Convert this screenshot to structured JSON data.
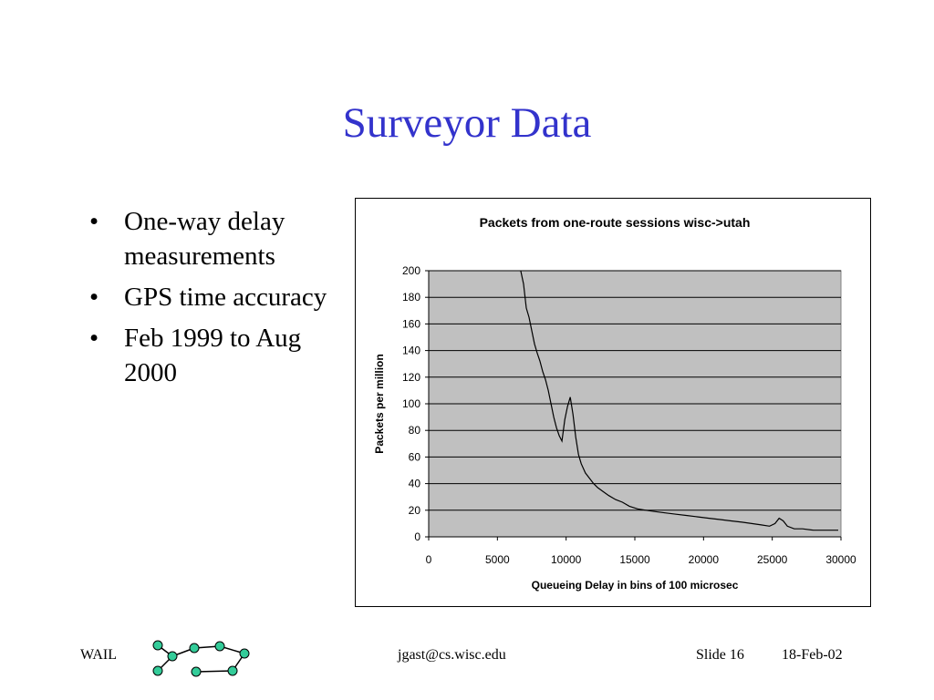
{
  "slide": {
    "title": "Surveyor Data",
    "bullets": [
      "One-way delay measurements",
      "GPS time accuracy",
      "Feb 1999 to Aug 2000"
    ],
    "bullet_symbol": "•"
  },
  "footer": {
    "left": "WAIL",
    "center": "jgast@cs.wisc.edu",
    "slide_number": "Slide 16",
    "date": "18-Feb-02"
  },
  "colors": {
    "title": "#3333cc",
    "plot_area": "#c0c0c0",
    "logo_node": "#33cc99"
  },
  "chart_data": {
    "type": "line",
    "title": "Packets from one-route sessions wisc->utah",
    "xlabel": "Queueing Delay in bins of 100 microsec",
    "ylabel": "Packets per million",
    "xlim": [
      0,
      30000
    ],
    "ylim": [
      0,
      200
    ],
    "xticks": [
      0,
      5000,
      10000,
      15000,
      20000,
      25000,
      30000
    ],
    "yticks": [
      0,
      20,
      40,
      60,
      80,
      100,
      120,
      140,
      160,
      180,
      200
    ],
    "grid": "horizontal",
    "legend": "none",
    "series": [
      {
        "values": [
          [
            6700,
            200
          ],
          [
            6900,
            190
          ],
          [
            7100,
            172
          ],
          [
            7300,
            165
          ],
          [
            7500,
            155
          ],
          [
            7700,
            145
          ],
          [
            7900,
            138
          ],
          [
            8100,
            132
          ],
          [
            8300,
            124
          ],
          [
            8500,
            118
          ],
          [
            8700,
            110
          ],
          [
            8900,
            100
          ],
          [
            9100,
            90
          ],
          [
            9300,
            82
          ],
          [
            9500,
            76
          ],
          [
            9700,
            72
          ],
          [
            9900,
            88
          ],
          [
            10100,
            98
          ],
          [
            10300,
            105
          ],
          [
            10500,
            92
          ],
          [
            10700,
            75
          ],
          [
            10900,
            62
          ],
          [
            11100,
            55
          ],
          [
            11400,
            48
          ],
          [
            11700,
            44
          ],
          [
            12000,
            40
          ],
          [
            12300,
            37
          ],
          [
            12700,
            34
          ],
          [
            13100,
            31
          ],
          [
            13600,
            28
          ],
          [
            14100,
            26
          ],
          [
            14600,
            23
          ],
          [
            15200,
            21
          ],
          [
            15800,
            20
          ],
          [
            16500,
            19
          ],
          [
            17200,
            18
          ],
          [
            18000,
            17
          ],
          [
            18800,
            16
          ],
          [
            19600,
            15
          ],
          [
            20400,
            14
          ],
          [
            21200,
            13
          ],
          [
            22000,
            12
          ],
          [
            22800,
            11
          ],
          [
            23500,
            10
          ],
          [
            24200,
            9
          ],
          [
            24800,
            8
          ],
          [
            25200,
            10
          ],
          [
            25500,
            14
          ],
          [
            25800,
            12
          ],
          [
            26100,
            8
          ],
          [
            26600,
            6
          ],
          [
            27200,
            6
          ],
          [
            28000,
            5
          ],
          [
            29000,
            5
          ],
          [
            29800,
            5
          ]
        ]
      }
    ]
  }
}
